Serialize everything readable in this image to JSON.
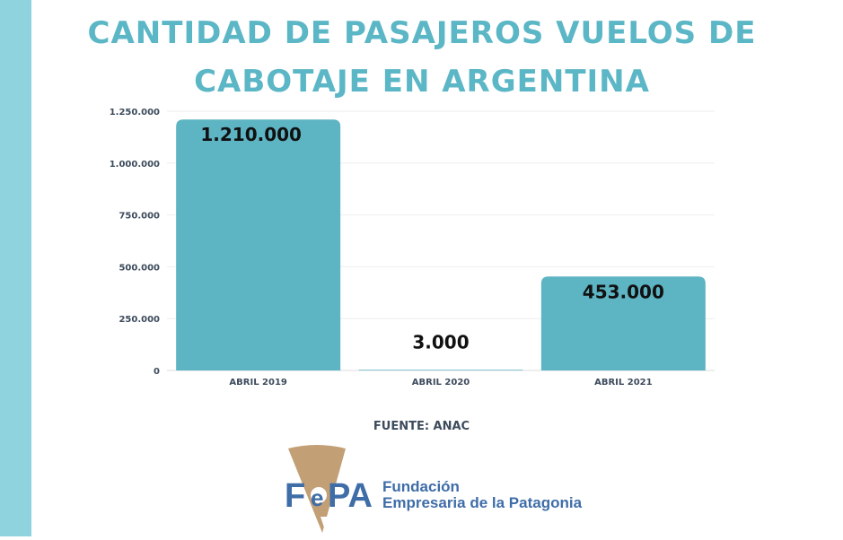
{
  "title_line1": "CANTIDAD DE PASAJEROS VUELOS DE",
  "title_line2": "CABOTAJE EN ARGENTINA",
  "source": "FUENTE: ANAC",
  "logo": {
    "mark_letters": "FePA",
    "name_line1": "Fundación",
    "name_line2": "Empresaria de la Patagonia"
  },
  "colors": {
    "bar": "#5db4c3",
    "title": "#5bb6c6",
    "side_bar": "#8fd3df",
    "logo_blue": "#3f6da8",
    "logo_tan": "#c29f75"
  },
  "chart_data": {
    "type": "bar",
    "title": "CANTIDAD DE PASAJEROS VUELOS DE CABOTAJE EN ARGENTINA",
    "categories": [
      "ABRIL 2019",
      "ABRIL 2020",
      "ABRIL 2021"
    ],
    "values": [
      1210000,
      3000,
      453000
    ],
    "value_labels": [
      "1.210.000",
      "3.000",
      "453.000"
    ],
    "yticks": [
      0,
      250000,
      500000,
      750000,
      1000000,
      1250000
    ],
    "ytick_labels": [
      "0",
      "250.000",
      "500.000",
      "750.000",
      "1.000.000",
      "1.250.000"
    ],
    "ylim": [
      0,
      1250000
    ],
    "grid": true,
    "legend": "none",
    "xlabel": "",
    "ylabel": ""
  }
}
